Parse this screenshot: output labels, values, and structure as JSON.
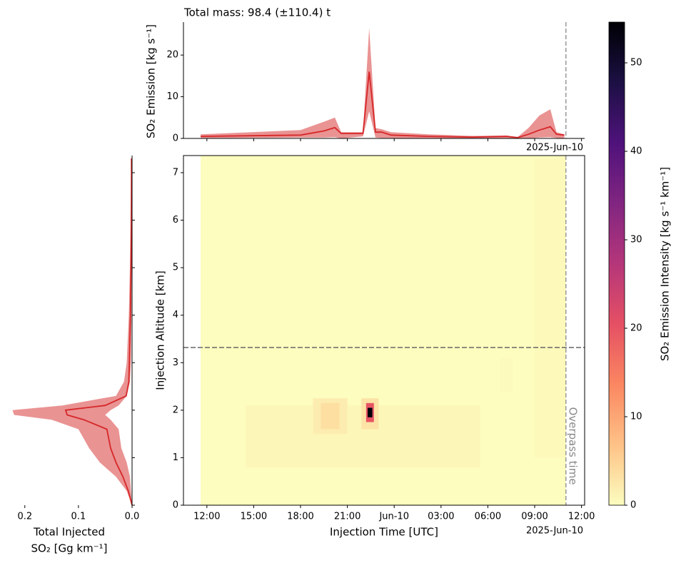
{
  "chart_data": [
    {
      "type": "band_line",
      "title": "Total mass: 98.4 (±110.4) t",
      "ylabel": "SO₂ Emission [kg s⁻¹]",
      "x_offset_label": "2025-Jun-10",
      "x": [
        11.6,
        18.0,
        19.5,
        20.2,
        20.6,
        22.0,
        22.4,
        22.8,
        23.2,
        23.8,
        26.2,
        29.0,
        31.2,
        31.9,
        32.6,
        33.3,
        34.0,
        34.4,
        34.9
      ],
      "values": [
        0.5,
        0.8,
        1.8,
        2.6,
        1.2,
        1.2,
        16,
        1.5,
        1.5,
        0.8,
        0.5,
        0.3,
        0.5,
        0.2,
        1.0,
        2.0,
        2.8,
        1.0,
        0.8
      ],
      "upper": [
        1.0,
        2.0,
        4.0,
        5.0,
        1.5,
        1.5,
        26.5,
        2.5,
        2.2,
        1.5,
        1.0,
        0.6,
        0.7,
        0.3,
        2.5,
        5.5,
        7.0,
        1.5,
        1.0
      ],
      "lower": [
        0.1,
        0.2,
        0.2,
        0.3,
        0.0,
        0.5,
        6.5,
        0.2,
        0.1,
        0.1,
        0.0,
        0.0,
        0.1,
        0.0,
        0.0,
        0.2,
        0.3,
        0.1,
        0.0
      ],
      "color": "#d62728",
      "xlim": [
        10.5,
        36.2
      ],
      "xticks": [
        12,
        15,
        18,
        21,
        24,
        27,
        30,
        33,
        36
      ],
      "ylim": [
        0,
        27.9
      ],
      "yticks": [
        0,
        10,
        20
      ]
    },
    {
      "type": "heatmap",
      "xlabel": "Injection Time [UTC]",
      "ylabel": "Injection Altitude [km]",
      "x_offset_label": "2025-Jun-10",
      "colorbar_label": "SO₂ Emission Intensity [kg s⁻¹ km⁻¹]",
      "colormap": "magma_r",
      "clim": [
        0,
        54.6
      ],
      "cticks": [
        0,
        10,
        20,
        30,
        40,
        50
      ],
      "xlim": [
        10.5,
        36.2
      ],
      "xticks": [
        {
          "value": 12,
          "label": "12:00"
        },
        {
          "value": 15,
          "label": "15:00"
        },
        {
          "value": 18,
          "label": "18:00"
        },
        {
          "value": 21,
          "label": "21:00"
        },
        {
          "value": 24,
          "label": "Jun-10"
        },
        {
          "value": 27,
          "label": "03:00"
        },
        {
          "value": 30,
          "label": "06:00"
        },
        {
          "value": 33,
          "label": "09:00"
        },
        {
          "value": 36,
          "label": "12:00"
        }
      ],
      "ylim": [
        0,
        7.36
      ],
      "yticks": [
        0,
        1,
        2,
        3,
        4,
        5,
        6,
        7
      ],
      "overpass_time": 35.0,
      "overpass_label": "Overpass time",
      "reference_altitude": 3.32,
      "cells": [
        {
          "x": [
            11.6,
            35.0
          ],
          "y": [
            0,
            7.36
          ],
          "value": 0
        },
        {
          "x": [
            14.5,
            29.5
          ],
          "y": [
            0.8,
            2.1
          ],
          "value": 0.8
        },
        {
          "x": [
            33.0,
            35.0
          ],
          "y": [
            1.0,
            7.3
          ],
          "value": 0.5
        },
        {
          "x": [
            30.8,
            31.6
          ],
          "y": [
            2.4,
            3.1
          ],
          "value": 0.4
        },
        {
          "x": [
            18.8,
            21.0
          ],
          "y": [
            1.5,
            2.25
          ],
          "value": 2
        },
        {
          "x": [
            19.3,
            20.5
          ],
          "y": [
            1.6,
            2.15
          ],
          "value": 3.5
        },
        {
          "x": [
            21.9,
            23.0
          ],
          "y": [
            1.6,
            2.25
          ],
          "value": 3
        },
        {
          "x": [
            22.2,
            22.7
          ],
          "y": [
            1.75,
            2.15
          ],
          "value": 20
        },
        {
          "x": [
            22.3,
            22.6
          ],
          "y": [
            1.85,
            2.05
          ],
          "value": 54
        }
      ]
    },
    {
      "type": "profile",
      "xlabel": "Total Injected",
      "xlabel2": "SO₂ [Gg km⁻¹]",
      "y": [
        0,
        0.3,
        0.6,
        0.9,
        1.2,
        1.6,
        1.8,
        1.9,
        2.0,
        2.1,
        2.3,
        2.6,
        3.0,
        4.0,
        5.0,
        6.0,
        7.0,
        7.3
      ],
      "values": [
        0,
        0.007,
        0.017,
        0.03,
        0.04,
        0.047,
        0.09,
        0.121,
        0.124,
        0.05,
        0.011,
        0.006,
        0.005,
        0.003,
        0.002,
        0.001,
        0.001,
        0.001
      ],
      "upper": [
        0,
        0.01,
        0.03,
        0.06,
        0.08,
        0.1,
        0.15,
        0.22,
        0.223,
        0.13,
        0.03,
        0.015,
        0.01,
        0.006,
        0.004,
        0.003,
        0.002,
        0.002
      ],
      "lower": [
        0,
        0.002,
        0.004,
        0.01,
        0.02,
        0.025,
        0.04,
        0.05,
        0.04,
        0.025,
        0.01,
        0.004,
        0.002,
        0.001,
        0.001,
        0,
        0,
        0
      ],
      "color": "#d62728",
      "xlim": [
        0.233,
        0
      ],
      "xticks": [
        0.2,
        0.1,
        {
          "value": 0,
          "label": "0.0"
        }
      ],
      "ylim": [
        0,
        7.36
      ],
      "yticks": [
        0,
        1,
        2,
        3,
        4,
        5,
        6,
        7
      ]
    }
  ]
}
